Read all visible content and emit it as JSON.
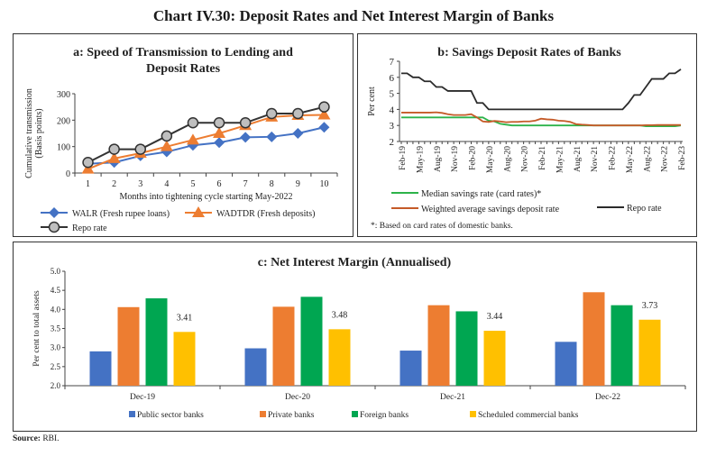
{
  "title": "Chart IV.30: Deposit Rates and Net Interest Margin of Banks",
  "source_label": "Source:",
  "source_text": "RBI.",
  "chart_data": [
    {
      "type": "line",
      "title_lines": [
        "a: Speed of Transmission to Lending and",
        "Deposit Rates"
      ],
      "xlabel": "Months into tightening cycle starting May-2022",
      "ylabel_lines": [
        "Cumulative transmission",
        "(Basis points)"
      ],
      "categories": [
        "1",
        "2",
        "3",
        "4",
        "5",
        "6",
        "7",
        "8",
        "9",
        "10"
      ],
      "ylim": [
        0,
        300
      ],
      "yticks": [
        0,
        100,
        200,
        300
      ],
      "series": [
        {
          "name": "WALR (Fresh rupee loans)",
          "color": "#4472c4",
          "marker": "diamond",
          "values": [
            35,
            40,
            65,
            80,
            105,
            115,
            135,
            137,
            150,
            173
          ]
        },
        {
          "name": "WADTDR (Fresh deposits)",
          "color": "#ed7d31",
          "marker": "triangle",
          "values": [
            15,
            55,
            75,
            100,
            125,
            150,
            180,
            212,
            218,
            220
          ]
        },
        {
          "name": "Repo rate",
          "color": "#333333",
          "marker": "circle",
          "values": [
            40,
            90,
            90,
            140,
            190,
            190,
            190,
            225,
            225,
            250
          ]
        }
      ]
    },
    {
      "type": "line",
      "title": "b: Savings Deposit Rates of Banks",
      "ylabel": "Per cent",
      "ylim": [
        2,
        7
      ],
      "yticks": [
        2,
        3,
        4,
        5,
        6,
        7
      ],
      "tick_labels": [
        "Feb-19",
        "May-19",
        "Aug-19",
        "Nov-19",
        "Feb-20",
        "May-20",
        "Aug-20",
        "Nov-20",
        "Feb-21",
        "May-21",
        "Aug-21",
        "Nov-21",
        "Feb-22",
        "May-22",
        "Aug-22",
        "Nov-22",
        "Feb-23"
      ],
      "series": [
        {
          "name": "Median savings rate (card rates)*",
          "color": "#2db34a",
          "values": [
            3.5,
            3.5,
            3.5,
            3.5,
            3.5,
            3.5,
            3.5,
            3.5,
            3.5,
            3.5,
            3.5,
            3.5,
            3.5,
            3.5,
            3.5,
            3.3,
            3.25,
            3.1,
            3.05,
            3.0,
            3.0,
            3.0,
            3.0,
            3.0,
            3.0,
            3.0,
            3.0,
            3.0,
            3.0,
            3.0,
            3.0,
            3.0,
            3.0,
            3.0,
            3.0,
            3.0,
            3.0,
            3.0,
            3.0,
            3.0,
            3.0,
            3.0,
            2.95,
            2.95,
            2.95,
            2.95,
            2.95,
            2.95,
            3.0
          ]
        },
        {
          "name": "Weighted average savings deposit rate",
          "color": "#c55a28",
          "values": [
            3.8,
            3.8,
            3.8,
            3.8,
            3.8,
            3.8,
            3.82,
            3.78,
            3.7,
            3.65,
            3.65,
            3.65,
            3.7,
            3.5,
            3.25,
            3.22,
            3.28,
            3.25,
            3.2,
            3.22,
            3.22,
            3.25,
            3.25,
            3.3,
            3.42,
            3.38,
            3.36,
            3.3,
            3.28,
            3.22,
            3.08,
            3.05,
            3.03,
            3.0,
            3.0,
            3.0,
            3.0,
            3.0,
            3.0,
            3.0,
            3.0,
            3.0,
            3.02,
            3.02,
            3.03,
            3.03,
            3.03,
            3.03,
            3.03
          ]
        },
        {
          "name": "Repo rate",
          "color": "#2b2b2b",
          "values": [
            6.25,
            6.25,
            6.0,
            6.0,
            5.75,
            5.75,
            5.4,
            5.4,
            5.15,
            5.15,
            5.15,
            5.15,
            5.15,
            4.4,
            4.4,
            4.0,
            4.0,
            4.0,
            4.0,
            4.0,
            4.0,
            4.0,
            4.0,
            4.0,
            4.0,
            4.0,
            4.0,
            4.0,
            4.0,
            4.0,
            4.0,
            4.0,
            4.0,
            4.0,
            4.0,
            4.0,
            4.0,
            4.0,
            4.0,
            4.4,
            4.9,
            4.9,
            5.4,
            5.9,
            5.9,
            5.9,
            6.25,
            6.25,
            6.5
          ]
        }
      ],
      "footnote": "*: Based on card rates of domestic banks."
    },
    {
      "type": "bar",
      "title": "c: Net Interest Margin (Annualised)",
      "ylabel": "Per cent to total assets",
      "categories": [
        "Dec-19",
        "Dec-20",
        "Dec-21",
        "Dec-22"
      ],
      "ylim": [
        2.0,
        5.0
      ],
      "yticks": [
        "2.0",
        "2.5",
        "3.0",
        "3.5",
        "4.0",
        "4.5",
        "5.0"
      ],
      "series": [
        {
          "name": "Public sector banks",
          "color": "#4472c4",
          "values": [
            2.9,
            2.98,
            2.92,
            3.15
          ]
        },
        {
          "name": "Private banks",
          "color": "#ed7d31",
          "values": [
            4.06,
            4.07,
            4.11,
            4.45
          ]
        },
        {
          "name": "Foreign banks",
          "color": "#00a651",
          "values": [
            4.29,
            4.33,
            3.95,
            4.11
          ]
        },
        {
          "name": "Scheduled commercial banks",
          "color": "#ffc000",
          "values": [
            3.41,
            3.48,
            3.44,
            3.73
          ]
        }
      ],
      "data_labels": [
        "3.41",
        "3.48",
        "3.44",
        "3.73"
      ]
    }
  ]
}
